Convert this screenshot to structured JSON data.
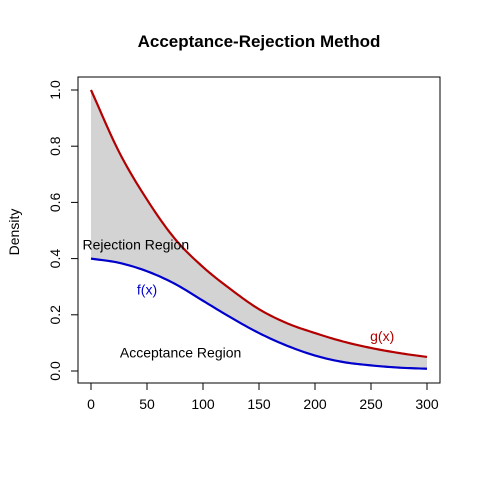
{
  "chart_data": {
    "type": "line",
    "title": "Acceptance-Rejection Method",
    "xlabel": "",
    "ylabel": "Density",
    "xlim": [
      0,
      300
    ],
    "ylim": [
      0,
      1.0
    ],
    "x_ticks": [
      0,
      50,
      100,
      150,
      200,
      250,
      300
    ],
    "y_ticks": [
      0.0,
      0.2,
      0.4,
      0.6,
      0.8,
      1.0
    ],
    "grid": false,
    "fill_color": "#d3d3d3",
    "series": [
      {
        "name": "g(x)",
        "color": "#b30000",
        "x": [
          0,
          25,
          50,
          75,
          100,
          125,
          150,
          175,
          200,
          225,
          250,
          275,
          300
        ],
        "y": [
          1.0,
          0.78,
          0.61,
          0.47,
          0.37,
          0.29,
          0.22,
          0.17,
          0.135,
          0.105,
          0.082,
          0.064,
          0.05
        ]
      },
      {
        "name": "f(x)",
        "color": "#0000cc",
        "x": [
          0,
          25,
          50,
          75,
          100,
          125,
          150,
          175,
          200,
          225,
          250,
          275,
          300
        ],
        "y": [
          0.4,
          0.385,
          0.355,
          0.31,
          0.25,
          0.19,
          0.135,
          0.09,
          0.055,
          0.032,
          0.02,
          0.012,
          0.008
        ]
      }
    ],
    "annotations": [
      {
        "text": "Rejection Region",
        "x": 40,
        "y": 0.45,
        "color": "#000000"
      },
      {
        "text": "f(x)",
        "x": 50,
        "y": 0.29,
        "color": "#0000cc"
      },
      {
        "text": "g(x)",
        "x": 260,
        "y": 0.125,
        "color": "#b30000"
      },
      {
        "text": "Acceptance Region",
        "x": 80,
        "y": 0.065,
        "color": "#000000"
      }
    ]
  }
}
